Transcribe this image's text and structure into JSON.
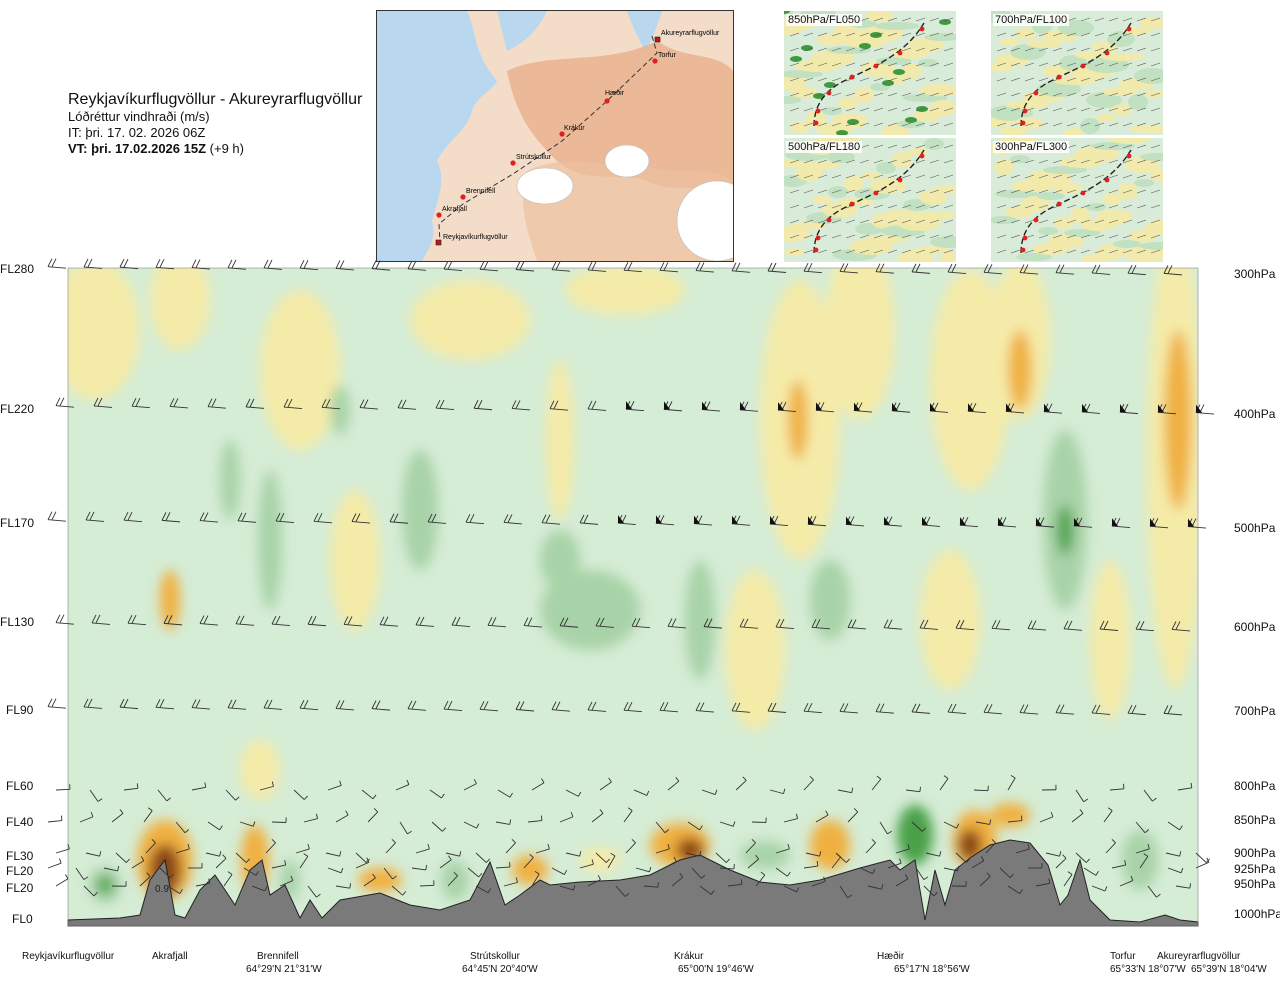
{
  "header": {
    "route": "Reykjavíkurflugvöllur - Akureyrarflugvöllur",
    "variable": "Lóðréttur vindhraði (m/s)",
    "it": "IT: þri. 17. 02. 2026 06Z",
    "vt_bold": "VT: þri. 17.02.2026 15Z",
    "vt_rest": " (+9 h)"
  },
  "map": {
    "waypoints": [
      "Akureyrarflugvöllur",
      "Torfur",
      "Hæðir",
      "Krákur",
      "Strútskollur",
      "Brennifell",
      "Akrafjall",
      "Reykjavíkurflugvöllur"
    ],
    "colors": {
      "sea": "#b9d7ee",
      "land_low": "#f3ddc8",
      "land_high": "#e7a982",
      "glacier": "#ffffff",
      "route": "#333333",
      "point": "#e02020"
    }
  },
  "mini_maps": [
    {
      "id": "850",
      "label": "850hPa/FL050"
    },
    {
      "id": "700",
      "label": "700hPa/FL100"
    },
    {
      "id": "500",
      "label": "500hPa/FL180"
    },
    {
      "id": "300",
      "label": "300hPa/FL300"
    }
  ],
  "chart_data": {
    "type": "heatmap",
    "title": "Lóðréttur vindhraði (m/s)",
    "left_axis_labels": [
      "FL280",
      "FL220",
      "FL170",
      "FL130",
      "FL90",
      "FL60",
      "FL40",
      "FL30",
      "FL20",
      "FL20",
      "FL0"
    ],
    "right_axis_labels": [
      "300hPa",
      "400hPa",
      "500hPa",
      "600hPa",
      "700hPa",
      "800hPa",
      "850hPa",
      "900hPa",
      "925hPa",
      "950hPa",
      "1000hPa"
    ],
    "pressure_levels_hpa": [
      300,
      400,
      500,
      600,
      700,
      800,
      850,
      900,
      925,
      950,
      1000
    ],
    "bottom_locations": [
      {
        "name": "Reykjavíkurflugvöllur",
        "coord": ""
      },
      {
        "name": "Akrafjall",
        "coord": ""
      },
      {
        "name": "Brennifell",
        "coord": "64°29'N 21°31'W"
      },
      {
        "name": "Strútskollur",
        "coord": "64°45'N 20°40'W"
      },
      {
        "name": "Krákur",
        "coord": "65°00'N 19°46'W"
      },
      {
        "name": "Hæðir",
        "coord": "65°17'N 18°56'W"
      },
      {
        "name": "Torfur",
        "coord": "65°33'N 18°07'W"
      },
      {
        "name": "Akureyrarflugvöllur",
        "coord": "65°39'N 18°04'W"
      }
    ],
    "annotation": "0.9",
    "colors": {
      "strong_down": "#8b4513",
      "down": "#f0b040",
      "weak_down": "#f5eba8",
      "neutral": "#fbfbe8",
      "weak_up": "#d5ecd5",
      "up": "#a8d3a8",
      "strong_up": "#4aa04a",
      "terrain": "#7a7a7a"
    }
  }
}
